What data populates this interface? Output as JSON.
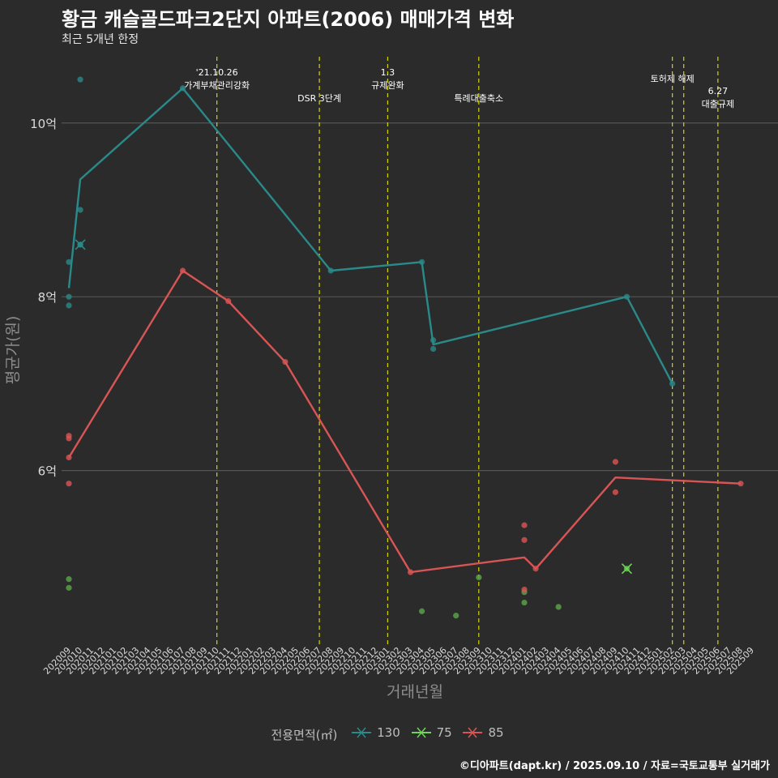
{
  "header": {
    "title": "황금 캐슬골드파크2단지 아파트(2006) 매매가격 변화",
    "subtitle": "최근 5개년 한정"
  },
  "caption": "©디아파트(dapt.kr) / 2025.09.10 / 자료=국토교통부 실거래가",
  "colors": {
    "background": "#2b2b2b",
    "grid": "#555555",
    "vline": "#d4d400",
    "130": "#2a8a8a",
    "75": "#5aa84a",
    "85": "#d95555"
  },
  "chart_data": {
    "type": "line",
    "title": "황금 캐슬골드파크2단지 아파트(2006) 매매가격 변화",
    "xlabel": "거래년월",
    "ylabel": "평균가(원)",
    "ylim": [
      4.0,
      10.8
    ],
    "yticks": [
      6,
      8,
      10
    ],
    "ytick_labels": [
      "6억",
      "8억",
      "10억"
    ],
    "categories": [
      "202009",
      "202010",
      "202011",
      "202012",
      "202101",
      "202102",
      "202103",
      "202104",
      "202105",
      "202106",
      "202107",
      "202108",
      "202109",
      "202110",
      "202111",
      "202112",
      "202201",
      "202202",
      "202203",
      "202204",
      "202205",
      "202206",
      "202207",
      "202208",
      "202209",
      "202210",
      "202211",
      "202212",
      "202301",
      "202302",
      "202303",
      "202304",
      "202305",
      "202306",
      "202307",
      "202308",
      "202309",
      "202310",
      "202311",
      "202312",
      "202401",
      "202402",
      "202403",
      "202404",
      "202405",
      "202406",
      "202407",
      "202408",
      "202409",
      "202410",
      "202411",
      "202412",
      "202501",
      "202502",
      "202503",
      "202504",
      "202505",
      "202506",
      "202507",
      "202508",
      "202509"
    ],
    "legend_title": "전용면적(㎡)",
    "series": [
      {
        "name": "130",
        "line": [
          [
            "202009",
            8.1
          ],
          [
            "202010",
            9.35
          ],
          [
            "202107",
            10.4
          ],
          [
            "202208",
            8.3
          ],
          [
            "202304",
            8.4
          ],
          [
            "202305",
            7.45
          ],
          [
            "202410",
            8.0
          ],
          [
            "202502",
            7.0
          ]
        ],
        "points": [
          [
            "202010",
            10.5
          ],
          [
            "202010",
            9.0
          ],
          [
            "202009",
            8.4
          ],
          [
            "202009",
            8.0
          ],
          [
            "202009",
            7.9
          ],
          [
            "202107",
            10.4
          ],
          [
            "202208",
            8.3
          ],
          [
            "202304",
            8.4
          ],
          [
            "202305",
            7.5
          ],
          [
            "202305",
            7.4
          ],
          [
            "202410",
            8.0
          ],
          [
            "202502",
            7.0
          ]
        ],
        "cross": [
          [
            "202010",
            8.6
          ]
        ]
      },
      {
        "name": "75",
        "line": [],
        "points": [
          [
            "202009",
            4.75
          ],
          [
            "202009",
            4.65
          ],
          [
            "202304",
            4.38
          ],
          [
            "202307",
            4.33
          ],
          [
            "202309",
            4.77
          ],
          [
            "202401",
            4.6
          ],
          [
            "202401",
            4.48
          ],
          [
            "202404",
            4.43
          ]
        ],
        "cross": [
          [
            "202410",
            4.87
          ]
        ]
      },
      {
        "name": "85",
        "line": [
          [
            "202009",
            6.15
          ],
          [
            "202107",
            8.3
          ],
          [
            "202111",
            7.95
          ],
          [
            "202204",
            7.25
          ],
          [
            "202303",
            4.83
          ],
          [
            "202401",
            5.0
          ],
          [
            "202402",
            4.87
          ],
          [
            "202409",
            5.92
          ],
          [
            "202508",
            5.85
          ]
        ],
        "points": [
          [
            "202009",
            6.4
          ],
          [
            "202009",
            6.37
          ],
          [
            "202009",
            6.15
          ],
          [
            "202009",
            5.85
          ],
          [
            "202107",
            8.3
          ],
          [
            "202111",
            7.95
          ],
          [
            "202204",
            7.25
          ],
          [
            "202303",
            4.83
          ],
          [
            "202401",
            5.37
          ],
          [
            "202401",
            5.2
          ],
          [
            "202401",
            4.63
          ],
          [
            "202402",
            4.87
          ],
          [
            "202409",
            6.1
          ],
          [
            "202409",
            5.75
          ],
          [
            "202508",
            5.85
          ]
        ],
        "cross": []
      }
    ],
    "annotations": [
      {
        "x": "202110",
        "text": [
          "'21.10.26",
          "가계부채관리강화"
        ],
        "level": 0
      },
      {
        "x": "202207",
        "text": [
          "DSR 3단계"
        ],
        "level": 2
      },
      {
        "x": "202301",
        "text": [
          "1.3",
          "규제완화"
        ],
        "level": 0
      },
      {
        "x": "202309",
        "text": [
          "특례대출축소"
        ],
        "level": 2
      },
      {
        "x": "202502",
        "text": [
          "토허제 해제"
        ],
        "level": 1
      },
      {
        "x": "202503",
        "text": [],
        "level": 1
      },
      {
        "x": "202506",
        "text": [
          "6.27",
          "대출규제"
        ],
        "level": 3
      }
    ]
  }
}
